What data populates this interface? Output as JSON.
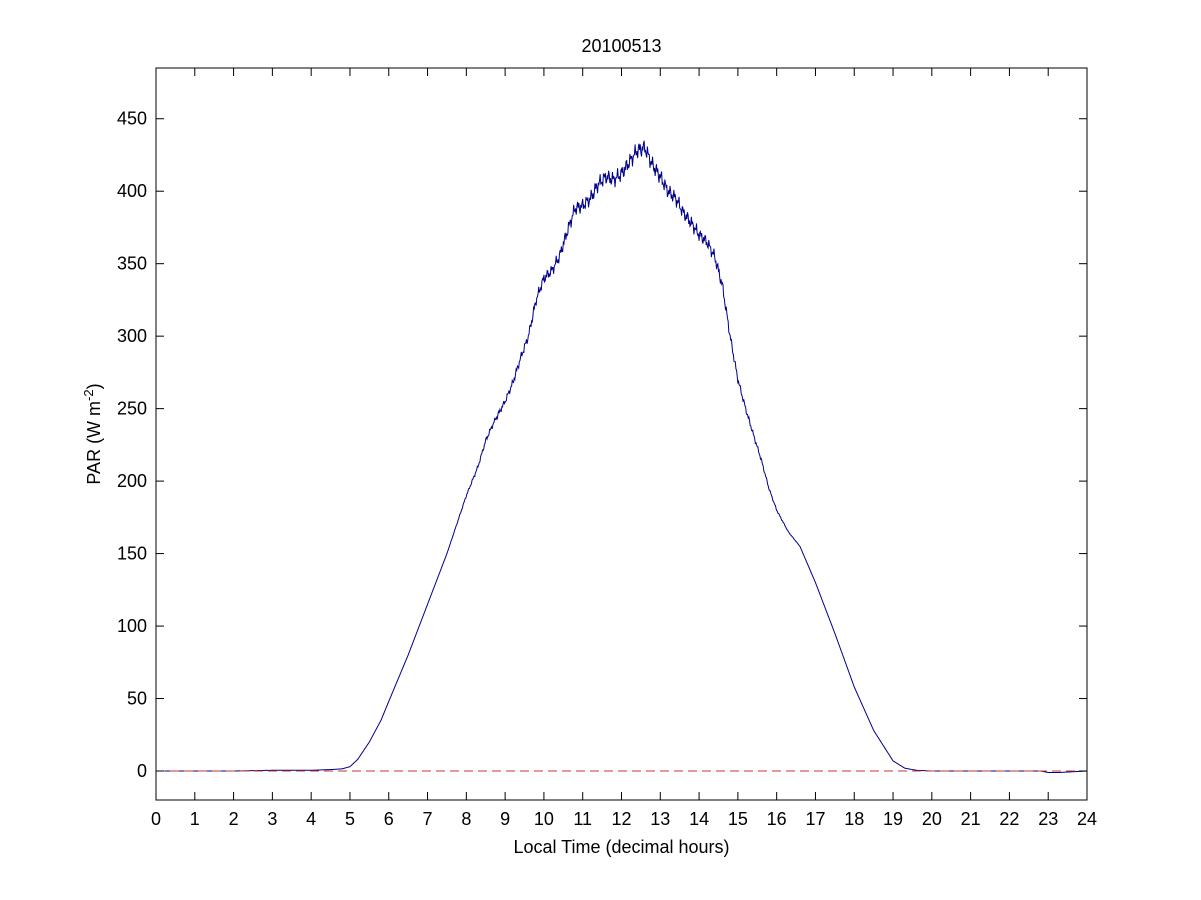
{
  "chart_data": {
    "type": "line",
    "title": "20100513",
    "xlabel": "Local Time (decimal hours)",
    "ylabel": {
      "prefix": "PAR (W m",
      "superscript": "-2",
      "suffix": ")"
    },
    "xlim": [
      0,
      24
    ],
    "ylim": [
      -20,
      485
    ],
    "xticks": [
      0,
      1,
      2,
      3,
      4,
      5,
      6,
      7,
      8,
      9,
      10,
      11,
      12,
      13,
      14,
      15,
      16,
      17,
      18,
      19,
      20,
      21,
      22,
      23,
      24
    ],
    "yticks": [
      0,
      50,
      100,
      150,
      200,
      250,
      300,
      350,
      400,
      450
    ],
    "grid": false,
    "legend": "none",
    "series": [
      {
        "color": "#00008b",
        "line_style": "solid",
        "x": [
          0,
          1,
          2,
          3,
          4,
          4.5,
          4.8,
          5.0,
          5.2,
          5.5,
          5.8,
          6.0,
          6.5,
          7.0,
          7.5,
          8.0,
          8.3,
          8.5,
          8.7,
          9.0,
          9.2,
          9.4,
          9.6,
          9.8,
          10.0,
          10.2,
          10.4,
          10.6,
          10.8,
          11.0,
          11.2,
          11.4,
          11.6,
          11.8,
          12.0,
          12.2,
          12.4,
          12.6,
          12.8,
          13.0,
          13.2,
          13.4,
          13.6,
          13.8,
          14.0,
          14.2,
          14.4,
          14.6,
          14.8,
          15.0,
          15.2,
          15.4,
          15.6,
          15.8,
          16.0,
          16.3,
          16.6,
          17.0,
          17.5,
          18.0,
          18.5,
          19.0,
          19.3,
          19.6,
          20.0,
          21,
          22,
          22.8,
          23.0,
          23.3,
          24
        ],
        "y": [
          0,
          0,
          0,
          0.5,
          0.5,
          1,
          1.5,
          3,
          8,
          20,
          35,
          48,
          80,
          115,
          150,
          190,
          210,
          228,
          240,
          255,
          268,
          285,
          300,
          325,
          340,
          345,
          355,
          372,
          388,
          390,
          395,
          405,
          410,
          408,
          412,
          420,
          428,
          430,
          418,
          410,
          400,
          395,
          385,
          378,
          370,
          365,
          355,
          335,
          300,
          270,
          250,
          232,
          215,
          195,
          180,
          165,
          155,
          130,
          95,
          58,
          28,
          7,
          2,
          0.5,
          0,
          0,
          0,
          0,
          -1,
          -1,
          0
        ]
      },
      {
        "color": "#cc3333",
        "line_style": "dashed",
        "x": [
          0,
          24
        ],
        "y": [
          0,
          0
        ]
      }
    ]
  }
}
